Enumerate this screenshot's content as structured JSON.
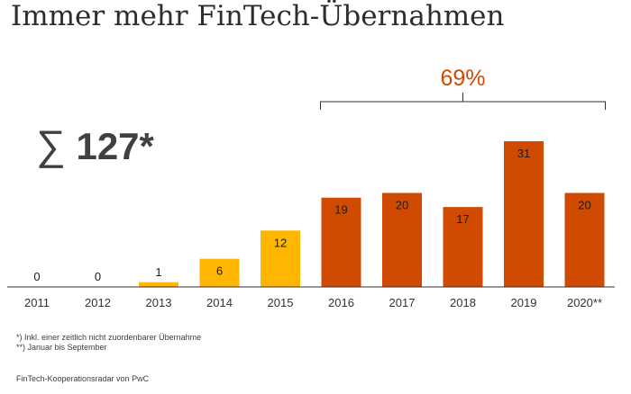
{
  "title": "Immer mehr FinTech-Übernahmen",
  "total": {
    "symbol": "∑",
    "value": "127*"
  },
  "bracket_label": "69%",
  "footnotes": [
    "*) Inkl. einer zeitlich nicht zuordenbarer Übernahme",
    "**) Januar bis September"
  ],
  "source": "FinTech-Kooperationsradar von PwC",
  "colors": {
    "early": "#ffb600",
    "recent": "#d04a02",
    "text": "#404040",
    "axis": "#333333"
  },
  "chart_data": {
    "type": "bar",
    "categories": [
      "2011",
      "2012",
      "2013",
      "2014",
      "2015",
      "2016",
      "2017",
      "2018",
      "2019",
      "2020**"
    ],
    "values": [
      0,
      0,
      1,
      6,
      12,
      19,
      20,
      17,
      31,
      20
    ],
    "bar_colors": [
      "#ffb600",
      "#ffb600",
      "#ffb600",
      "#ffb600",
      "#ffb600",
      "#d04a02",
      "#d04a02",
      "#d04a02",
      "#d04a02",
      "#d04a02"
    ],
    "ylim": [
      0,
      31
    ],
    "grid": false,
    "title": "",
    "xlabel": "",
    "ylabel": ""
  }
}
